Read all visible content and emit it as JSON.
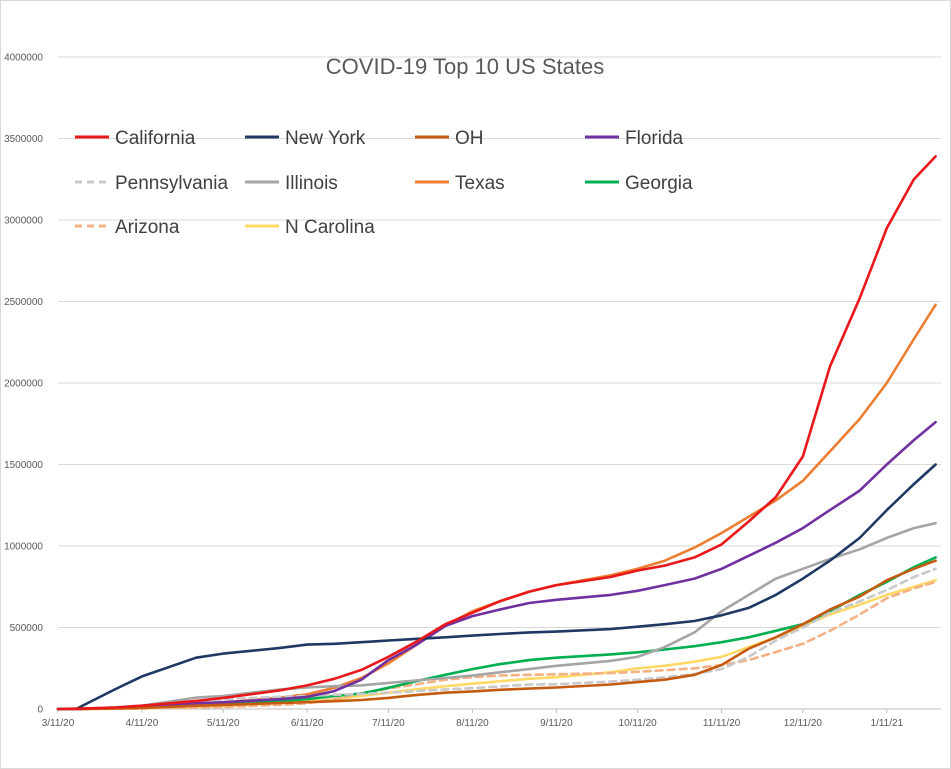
{
  "chart_data": {
    "type": "line",
    "title": "COVID-19 Top 10 US States",
    "xlabel": "",
    "ylabel": "",
    "ylim": [
      0,
      4000000
    ],
    "y_ticks": [
      "0",
      "500000",
      "1000000",
      "1500000",
      "2000000",
      "2500000",
      "3000000",
      "3500000",
      "4000000"
    ],
    "x_ticks": [
      "3/11/20",
      "4/11/20",
      "5/11/20",
      "6/11/20",
      "7/11/20",
      "8/11/20",
      "9/11/20",
      "10/11/20",
      "11/11/20",
      "12/11/20",
      "1/11/21"
    ],
    "x": [
      "3/11/20",
      "3/18/20",
      "4/1/20",
      "4/11/20",
      "5/1/20",
      "5/11/20",
      "6/1/20",
      "6/11/20",
      "6/21/20",
      "7/1/20",
      "7/11/20",
      "7/21/20",
      "8/1/20",
      "8/11/20",
      "8/21/20",
      "9/1/20",
      "9/11/20",
      "10/1/20",
      "10/11/20",
      "10/21/20",
      "11/1/20",
      "11/11/20",
      "11/21/20",
      "12/1/20",
      "12/11/20",
      "12/21/20",
      "1/1/21",
      "1/11/21",
      "1/21/21",
      "1/29/21"
    ],
    "grid": true,
    "legend_position": "top",
    "series": [
      {
        "name": "California",
        "color": "#e8181b",
        "dash": "solid",
        "values": [
          0,
          2000,
          9000,
          20000,
          50000,
          68000,
          115000,
          145000,
          185000,
          240000,
          320000,
          410000,
          520000,
          590000,
          660000,
          720000,
          760000,
          810000,
          850000,
          880000,
          930000,
          1010000,
          1150000,
          1300000,
          1550000,
          2100000,
          2520000,
          2950000,
          3250000,
          3390000
        ]
      },
      {
        "name": "New York",
        "color": "#203864",
        "dash": "solid",
        "values": [
          0,
          3000,
          120000,
          200000,
          315000,
          340000,
          375000,
          395000,
          400000,
          410000,
          420000,
          430000,
          440000,
          450000,
          460000,
          470000,
          475000,
          490000,
          505000,
          520000,
          540000,
          575000,
          620000,
          700000,
          800000,
          910000,
          1050000,
          1220000,
          1380000,
          1500000
        ]
      },
      {
        "name": "OH",
        "color": "#c55a11",
        "dash": "solid",
        "values": [
          0,
          100,
          3000,
          6000,
          20000,
          25000,
          37000,
          42000,
          48000,
          55000,
          68000,
          85000,
          100000,
          108000,
          118000,
          125000,
          132000,
          150000,
          165000,
          180000,
          210000,
          270000,
          370000,
          440000,
          520000,
          610000,
          690000,
          790000,
          860000,
          910000
        ]
      },
      {
        "name": "Florida",
        "color": "#7030a0",
        "dash": "solid",
        "values": [
          0,
          500,
          7000,
          17000,
          35000,
          42000,
          60000,
          75000,
          110000,
          180000,
          300000,
          390000,
          510000,
          570000,
          610000,
          650000,
          670000,
          700000,
          725000,
          760000,
          800000,
          860000,
          940000,
          1020000,
          1110000,
          1220000,
          1340000,
          1500000,
          1650000,
          1760000
        ]
      },
      {
        "name": "Pennsylvania",
        "color": "#c9c9c9",
        "dash": "dashed",
        "values": [
          0,
          200,
          10000,
          22000,
          50000,
          60000,
          75000,
          80000,
          88000,
          92000,
          100000,
          110000,
          120000,
          128000,
          138000,
          150000,
          152000,
          168000,
          180000,
          195000,
          215000,
          245000,
          320000,
          420000,
          500000,
          590000,
          660000,
          730000,
          810000,
          860000
        ]
      },
      {
        "name": "Illinois",
        "color": "#a5a5a5",
        "dash": "solid",
        "values": [
          0,
          200,
          10000,
          20000,
          70000,
          80000,
          120000,
          132000,
          140000,
          145000,
          160000,
          175000,
          190000,
          205000,
          225000,
          245000,
          265000,
          295000,
          320000,
          380000,
          470000,
          600000,
          700000,
          800000,
          860000,
          920000,
          980000,
          1050000,
          1110000,
          1140000
        ]
      },
      {
        "name": "Texas",
        "color": "#ed7d31",
        "dash": "solid",
        "values": [
          0,
          300,
          4000,
          14000,
          30000,
          40000,
          70000,
          90000,
          130000,
          190000,
          280000,
          390000,
          510000,
          600000,
          660000,
          720000,
          760000,
          820000,
          860000,
          910000,
          990000,
          1080000,
          1180000,
          1280000,
          1400000,
          1580000,
          1780000,
          2000000,
          2270000,
          2480000
        ]
      },
      {
        "name": "Georgia",
        "color": "#00b050",
        "dash": "solid",
        "values": [
          0,
          200,
          5000,
          12000,
          30000,
          35000,
          50000,
          60000,
          80000,
          95000,
          130000,
          170000,
          210000,
          245000,
          275000,
          300000,
          315000,
          335000,
          348000,
          365000,
          385000,
          410000,
          440000,
          480000,
          520000,
          600000,
          700000,
          780000,
          870000,
          930000
        ]
      },
      {
        "name": "Arizona",
        "color": "#f4b183",
        "dash": "dashed",
        "values": [
          0,
          200,
          1500,
          3500,
          9000,
          12000,
          25000,
          35000,
          60000,
          95000,
          125000,
          150000,
          180000,
          195000,
          205000,
          210000,
          213000,
          220000,
          228000,
          238000,
          250000,
          270000,
          300000,
          350000,
          400000,
          480000,
          580000,
          680000,
          740000,
          780000
        ]
      },
      {
        "name": "N Carolina",
        "color": "#ffd966",
        "dash": "solid",
        "values": [
          0,
          100,
          2000,
          4500,
          12000,
          16000,
          35000,
          45000,
          60000,
          80000,
          100000,
          120000,
          140000,
          155000,
          170000,
          185000,
          195000,
          225000,
          250000,
          265000,
          290000,
          320000,
          380000,
          440000,
          510000,
          580000,
          640000,
          700000,
          750000,
          790000
        ]
      }
    ]
  }
}
